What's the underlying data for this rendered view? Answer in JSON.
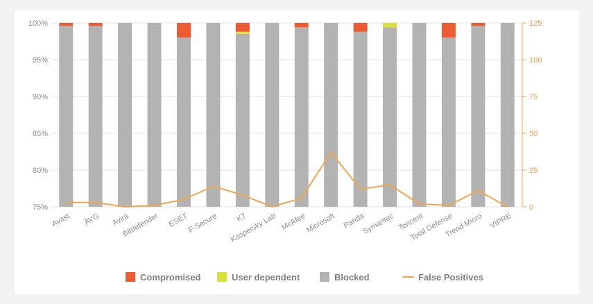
{
  "chart_data": {
    "type": "bar",
    "stacked": true,
    "categories": [
      "Avast",
      "AVG",
      "Avira",
      "Bitdefender",
      "ESET",
      "F-Secure",
      "K7",
      "Kaspersky Lab",
      "McAfee",
      "Microsoft",
      "Panda",
      "Symantec",
      "Tencent",
      "Total Defense",
      "Trend Micro",
      "VIPRE"
    ],
    "series": [
      {
        "name": "Blocked",
        "color": "#b3b3b3",
        "values": [
          99.6,
          99.6,
          100,
          100,
          98.0,
          100,
          98.5,
          100,
          99.4,
          100,
          98.8,
          99.4,
          100,
          98.0,
          99.6,
          100
        ]
      },
      {
        "name": "User dependent",
        "color": "#d9e03a",
        "values": [
          0,
          0,
          0,
          0,
          0,
          0,
          0.3,
          0,
          0,
          0,
          0,
          0.6,
          0,
          0,
          0,
          0
        ]
      },
      {
        "name": "Compromised",
        "color": "#ed5b32",
        "values": [
          0.4,
          0.4,
          0,
          0,
          2.0,
          0,
          1.2,
          0,
          0.6,
          0,
          1.2,
          0,
          0,
          2.0,
          0.4,
          0
        ]
      }
    ],
    "line_series": {
      "name": "False Positives",
      "color": "#f0a64e",
      "axis": "right",
      "values": [
        3,
        3,
        0,
        1,
        5,
        14,
        8,
        0,
        6,
        37,
        12,
        15,
        2,
        1,
        11,
        0
      ]
    },
    "left_axis": {
      "ylim": [
        75,
        100
      ],
      "ticks": [
        "75%",
        "80%",
        "85%",
        "90%",
        "95%",
        "100%"
      ]
    },
    "right_axis": {
      "ylim": [
        0,
        125
      ],
      "ticks": [
        "0",
        "25",
        "50",
        "75",
        "100",
        "125"
      ]
    },
    "grid": true,
    "legend": {
      "position": "bottom",
      "items": [
        {
          "label": "Compromised",
          "color": "#ed5b32",
          "kind": "box"
        },
        {
          "label": "User dependent",
          "color": "#d9e03a",
          "kind": "box"
        },
        {
          "label": "Blocked",
          "color": "#b3b3b3",
          "kind": "box"
        },
        {
          "label": "False Positives",
          "color": "#f0a64e",
          "kind": "line"
        }
      ]
    }
  }
}
